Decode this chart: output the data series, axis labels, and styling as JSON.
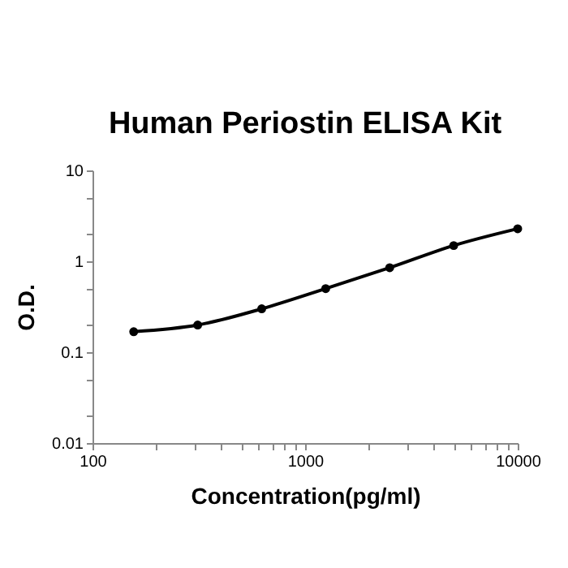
{
  "chart_data": {
    "type": "line",
    "title": "Human Periostin ELISA Kit",
    "xlabel": "Concentration(pg/ml)",
    "ylabel": "O.D.",
    "log": "xy",
    "marker": "circle",
    "grid": false,
    "x": [
      156.25,
      312.5,
      625,
      1250,
      2500,
      5000,
      10000
    ],
    "series": [
      {
        "color": "#000000",
        "values": [
          0.168,
          0.199,
          0.3,
          0.5,
          0.85,
          1.49,
          2.28
        ]
      }
    ],
    "xlim": [
      100,
      10000
    ],
    "ylim": [
      0.01,
      10
    ],
    "xticks": [
      100,
      {
        "value": 200,
        "label": null
      },
      {
        "value": 300,
        "label": null
      },
      {
        "value": 400,
        "label": null
      },
      {
        "value": 500,
        "label": null
      },
      {
        "value": 600,
        "label": null
      },
      {
        "value": 700,
        "label": null
      },
      {
        "value": 800,
        "label": null
      },
      {
        "value": 900,
        "label": null
      },
      1000,
      {
        "value": 2000,
        "label": null
      },
      {
        "value": 3000,
        "label": null
      },
      {
        "value": 4000,
        "label": null
      },
      {
        "value": 5000,
        "label": null
      },
      {
        "value": 6000,
        "label": null
      },
      {
        "value": 7000,
        "label": null
      },
      {
        "value": 8000,
        "label": null
      },
      {
        "value": 9000,
        "label": null
      },
      10000
    ],
    "yticks": [
      0.01,
      {
        "value": 0.02,
        "label": null
      },
      {
        "value": 0.05,
        "label": null
      },
      0.1,
      {
        "value": 0.2,
        "label": null
      },
      {
        "value": 0.5,
        "label": null
      },
      1,
      {
        "value": 2,
        "label": null
      },
      {
        "value": 5,
        "label": null
      },
      10
    ]
  }
}
